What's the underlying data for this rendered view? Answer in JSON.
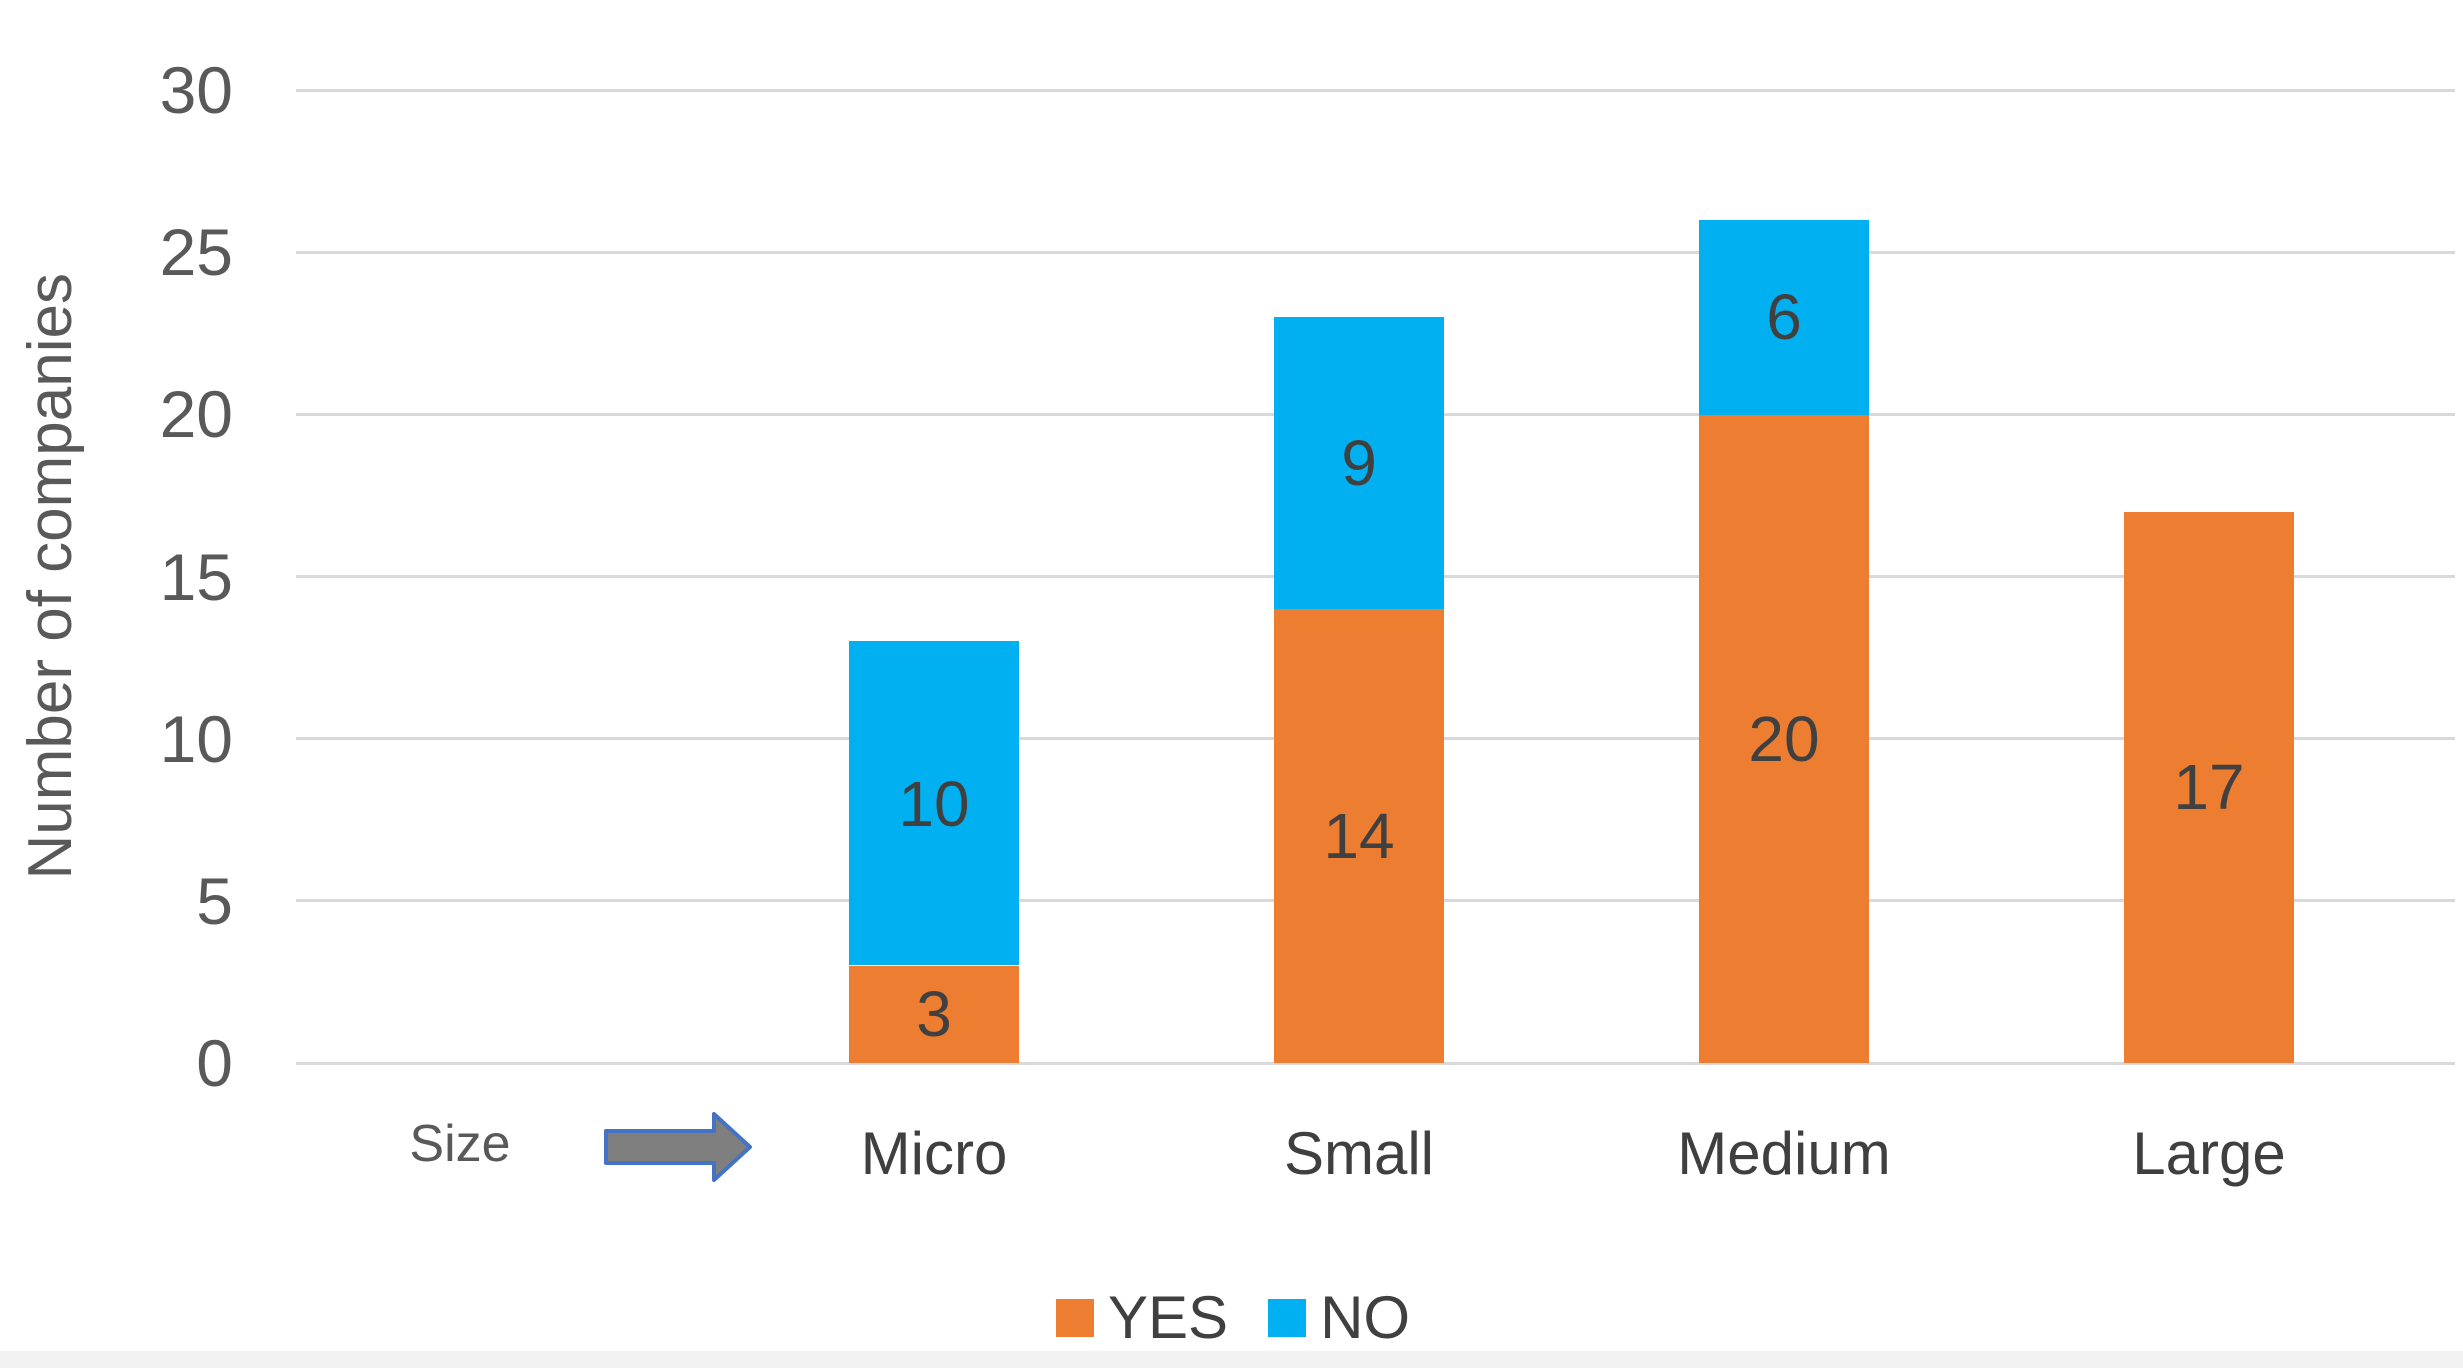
{
  "chart_data": {
    "type": "bar",
    "stacked": true,
    "title": "",
    "xlabel": "",
    "ylabel": "Number of companies",
    "categories": [
      "Micro",
      "Small",
      "Medium",
      "Large"
    ],
    "series": [
      {
        "name": "YES",
        "color": "#ED7D31",
        "values": [
          3,
          14,
          20,
          17
        ]
      },
      {
        "name": "NO",
        "color": "#00B0F0",
        "values": [
          10,
          9,
          6,
          0
        ]
      }
    ],
    "ylim": [
      0,
      30
    ],
    "yticks": [
      0,
      5,
      10,
      15,
      20,
      25,
      30
    ],
    "grid": true,
    "gridline_color": "#D9D9D9",
    "legend_position": "bottom",
    "annotation": {
      "label": "Size",
      "arrow": "right-block-arrow"
    }
  },
  "legend": {
    "items": [
      {
        "label": "YES",
        "color": "#ED7D31"
      },
      {
        "label": "NO",
        "color": "#00B0F0"
      }
    ]
  },
  "colors": {
    "arrow_fill": "#7F7F7F",
    "arrow_border": "#4472C4",
    "tick_text": "#595959",
    "label_text": "#404040"
  }
}
